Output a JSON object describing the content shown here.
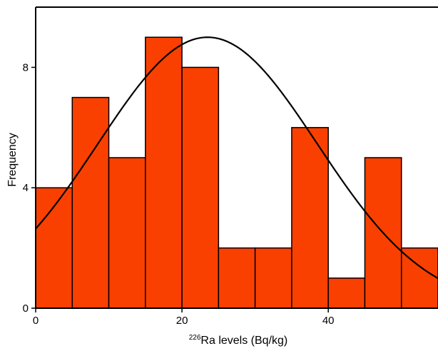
{
  "chart_data": {
    "type": "bar",
    "subtype": "histogram",
    "bin_edges": [
      0,
      5,
      10,
      15,
      20,
      25,
      30,
      35,
      40,
      45,
      50,
      55
    ],
    "values": [
      4,
      7,
      5,
      9,
      8,
      2,
      2,
      6,
      1,
      5,
      2
    ],
    "normal_curve": {
      "mean": 23.5,
      "sd": 15,
      "peak": 9.0
    },
    "xlabel": {
      "sup": "226",
      "main": "Ra levels (Bq/kg)"
    },
    "ylabel": "Frequency",
    "xlim": [
      0,
      55
    ],
    "ylim": [
      0,
      10
    ],
    "xticks": [
      0,
      20,
      40
    ],
    "yticks": [
      0,
      4,
      8
    ],
    "bar_color": "#F94000",
    "grid": false
  }
}
